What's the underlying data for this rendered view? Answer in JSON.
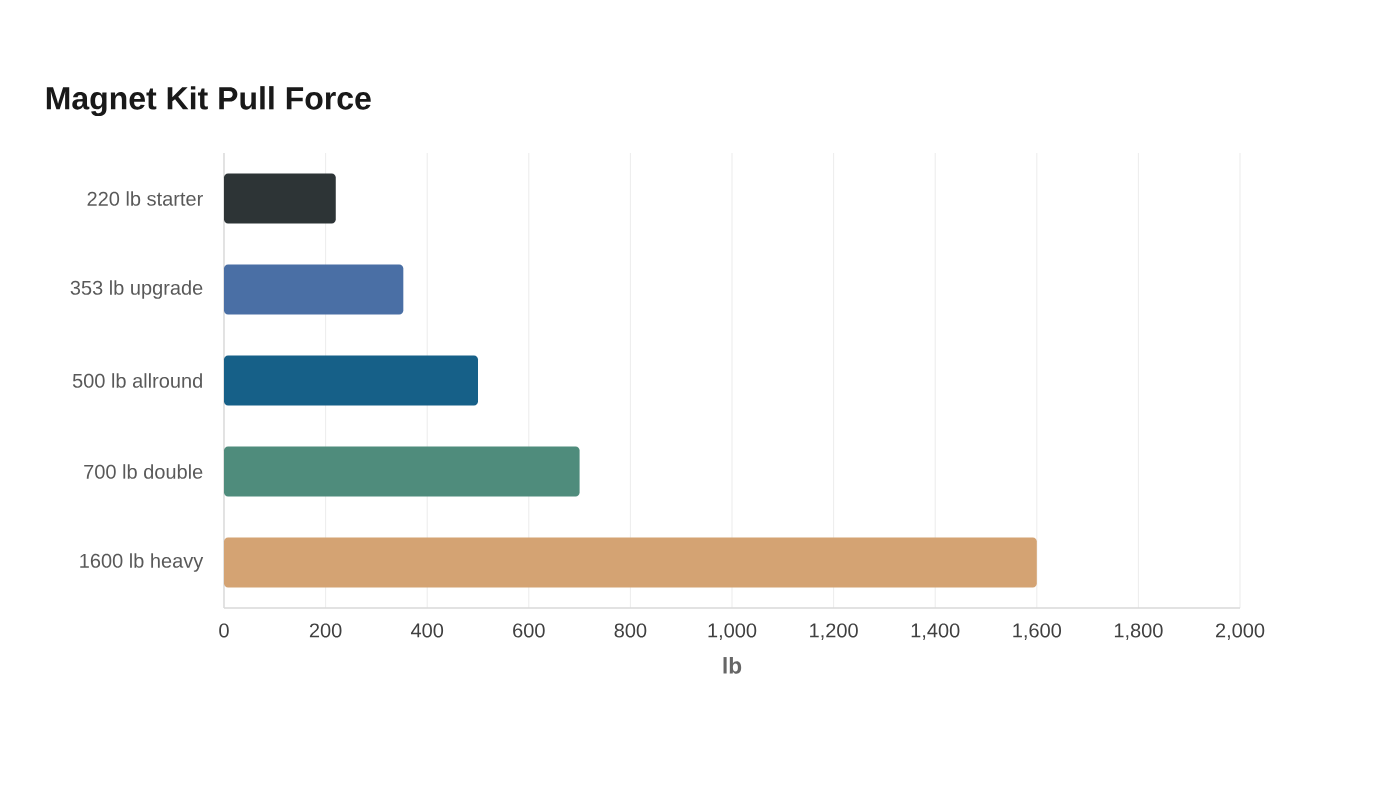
{
  "chart_data": {
    "type": "bar",
    "orientation": "horizontal",
    "title": "Magnet Kit Pull Force",
    "xlabel": "lb",
    "categories": [
      "220 lb starter",
      "353 lb upgrade",
      "500 lb allround",
      "700 lb double",
      "1600 lb heavy"
    ],
    "values": [
      220,
      353,
      500,
      700,
      1600
    ],
    "colors": [
      "#2d3436",
      "#4a6fa5",
      "#166088",
      "#4f8c7c",
      "#d4a373"
    ],
    "xlim": [
      0,
      2000
    ],
    "xticks": [
      0,
      200,
      400,
      600,
      800,
      {
        "value": 1000,
        "label": "1,000"
      },
      {
        "value": 1200,
        "label": "1,200"
      },
      {
        "value": 1400,
        "label": "1,400"
      },
      {
        "value": 1600,
        "label": "1,600"
      },
      {
        "value": 1800,
        "label": "1,800"
      },
      {
        "value": 2000,
        "label": "2,000"
      }
    ],
    "grid": "x"
  }
}
